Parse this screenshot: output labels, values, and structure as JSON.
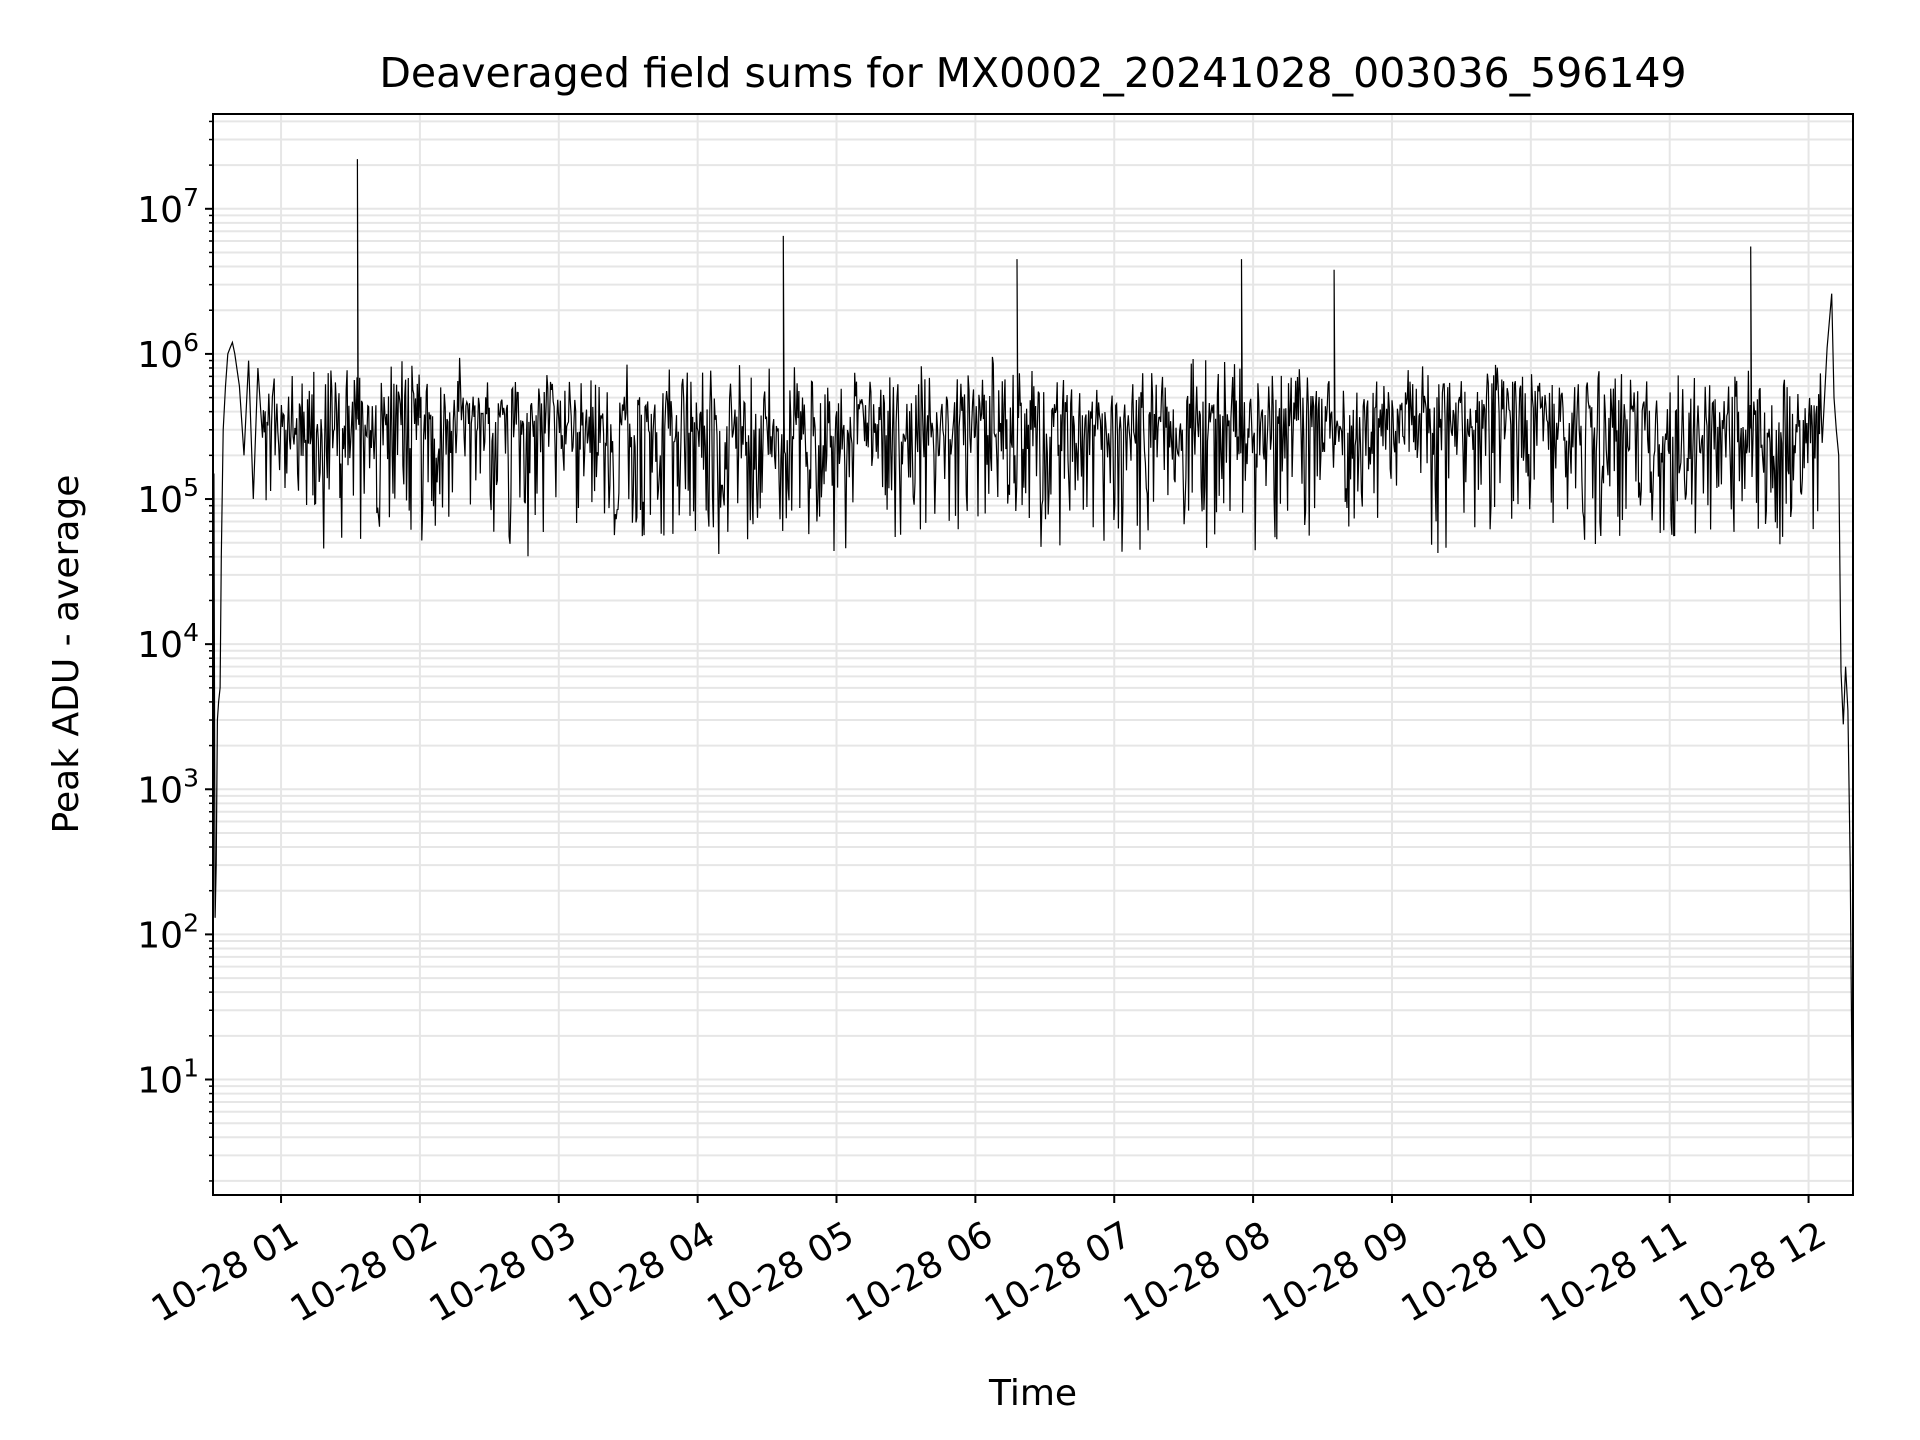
{
  "chart_data": {
    "type": "line",
    "title": "Deaveraged field sums for MX0002_20241028_003036_596149",
    "xlabel": "Time",
    "ylabel": "Peak ADU - average",
    "yscale": "log",
    "ylim": [
      1.6,
      45000000
    ],
    "xlim": [
      "2024-10-28 00:30:36",
      "2024-10-28 12:19:12"
    ],
    "x_ticks": [
      {
        "value": "2024-10-28 01:00",
        "label": "10-28 01"
      },
      {
        "value": "2024-10-28 02:00",
        "label": "10-28 02"
      },
      {
        "value": "2024-10-28 03:00",
        "label": "10-28 03"
      },
      {
        "value": "2024-10-28 04:00",
        "label": "10-28 04"
      },
      {
        "value": "2024-10-28 05:00",
        "label": "10-28 05"
      },
      {
        "value": "2024-10-28 06:00",
        "label": "10-28 06"
      },
      {
        "value": "2024-10-28 07:00",
        "label": "10-28 07"
      },
      {
        "value": "2024-10-28 08:00",
        "label": "10-28 08"
      },
      {
        "value": "2024-10-28 09:00",
        "label": "10-28 09"
      },
      {
        "value": "2024-10-28 10:00",
        "label": "10-28 10"
      },
      {
        "value": "2024-10-28 11:00",
        "label": "10-28 11"
      },
      {
        "value": "2024-10-28 12:00",
        "label": "10-28 12"
      }
    ],
    "y_ticks": [
      {
        "value": 10,
        "base": "10",
        "exp": "1"
      },
      {
        "value": 100,
        "base": "10",
        "exp": "2"
      },
      {
        "value": 1000,
        "base": "10",
        "exp": "3"
      },
      {
        "value": 10000,
        "base": "10",
        "exp": "4"
      },
      {
        "value": 100000,
        "base": "10",
        "exp": "5"
      },
      {
        "value": 1000000,
        "base": "10",
        "exp": "6"
      },
      {
        "value": 10000000,
        "base": "10",
        "exp": "7"
      }
    ],
    "grid": true,
    "line_color": "#000000",
    "grid_color": "#e6e6e6",
    "series": [
      {
        "x": [
          "2024-10-28 00:30:36",
          "2024-10-28 00:31:00",
          "2024-10-28 00:31:30",
          "2024-10-28 00:32:00",
          "2024-10-28 00:32:30",
          "2024-10-28 00:33:00",
          "2024-10-28 00:33:40",
          "2024-10-28 00:34:10",
          "2024-10-28 00:35:00",
          "2024-10-28 00:36:00",
          "2024-10-28 00:37:00",
          "2024-10-28 00:38:00",
          "2024-10-28 00:39:00",
          "2024-10-28 00:40:00",
          "2024-10-28 00:42:00",
          "2024-10-28 00:44:00",
          "2024-10-28 00:46:00",
          "2024-10-28 00:48:00",
          "2024-10-28 00:50:00",
          "2024-10-28 00:52:00",
          "2024-10-28 00:54:00",
          "2024-10-28 00:56:00",
          "2024-10-28 00:58:00",
          "2024-10-28 01:00:00",
          "2024-10-28 01:30:00",
          "2024-10-28 01:33:00",
          "2024-10-28 01:36:00",
          "2024-10-28 02:00:00",
          "2024-10-28 03:00:00",
          "2024-10-28 04:00:00",
          "2024-10-28 04:36:00",
          "2024-10-28 04:37:00",
          "2024-10-28 04:38:00",
          "2024-10-28 05:00:00",
          "2024-10-28 06:00:00",
          "2024-10-28 06:18:00",
          "2024-10-28 06:30:00",
          "2024-10-28 07:00:00",
          "2024-10-28 07:30:00",
          "2024-10-28 07:55:00",
          "2024-10-28 08:00:00",
          "2024-10-28 08:35:00",
          "2024-10-28 09:00:00",
          "2024-10-28 10:00:00",
          "2024-10-28 10:55:00",
          "2024-10-28 11:00:00",
          "2024-10-28 11:35:00",
          "2024-10-28 11:40:00",
          "2024-10-28 12:00:00",
          "2024-10-28 12:03:00",
          "2024-10-28 12:06:00",
          "2024-10-28 12:08:00",
          "2024-10-28 12:10:00",
          "2024-10-28 12:11:00",
          "2024-10-28 12:12:00",
          "2024-10-28 12:13:00",
          "2024-10-28 12:14:00",
          "2024-10-28 12:15:00",
          "2024-10-28 12:16:00",
          "2024-10-28 12:17:00",
          "2024-10-28 12:18:00",
          "2024-10-28 12:19:00"
        ],
        "y": [
          2,
          150000,
          130,
          300,
          3000,
          4000,
          5000,
          40000,
          300000,
          600000,
          1000000,
          1100000,
          1200000,
          1000000,
          600000,
          200000,
          900000,
          100000,
          800000,
          80000,
          600000,
          700000,
          100000,
          500000,
          800000,
          22000000,
          300000,
          400000,
          400000,
          350000,
          500000,
          6500000,
          400000,
          450000,
          500000,
          4500000,
          400000,
          300000,
          250000,
          4500000,
          300000,
          3800000,
          350000,
          300000,
          450000,
          400000,
          5500000,
          400000,
          500000,
          1000000,
          1300000,
          1100000,
          2600000,
          500000,
          300000,
          200000,
          6500,
          2800,
          7000,
          3500,
          300,
          4
        ]
      }
    ]
  }
}
